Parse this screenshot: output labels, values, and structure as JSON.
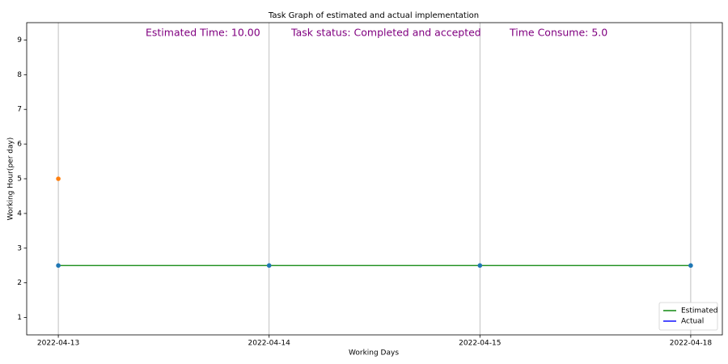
{
  "chart_data": {
    "type": "line",
    "title": "Task Graph of estimated and actual implementation",
    "x_label": "Working Days",
    "y_label": "Working Hour(per day)",
    "categories": [
      "2022-04-13",
      "2022-04-14",
      "2022-04-15",
      "2022-04-18"
    ],
    "series": [
      {
        "name": "Estimated",
        "color": "#008000",
        "marker_color": "#1f77b4",
        "values": [
          2.5,
          2.5,
          2.5,
          2.5
        ]
      },
      {
        "name": "Actual",
        "color": "#0000ff",
        "marker_color": "#ff7f0e",
        "values": [
          5,
          null,
          null,
          null
        ]
      }
    ],
    "annotations": [
      "Estimated Time: 10.00",
      "Task status: Completed and accepted",
      "Time Consume: 5.0"
    ],
    "ylim": [
      0.5,
      9.5
    ],
    "yticks": [
      1,
      2,
      3,
      4,
      5,
      6,
      7,
      8,
      9
    ],
    "grid": "x",
    "legend_position": "lower right"
  }
}
